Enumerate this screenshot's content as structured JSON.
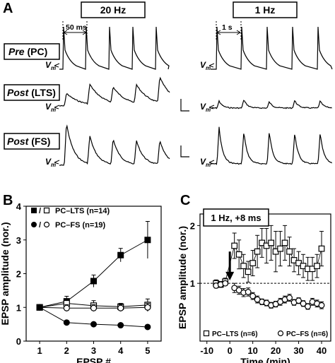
{
  "panel_labels": {
    "a": "A",
    "b": "B",
    "c": "C"
  },
  "panel_a": {
    "freq_left": "20 Hz",
    "freq_right": "1 Hz",
    "scale_left": "50 ms",
    "scale_right": "1 s",
    "vm_label": "V",
    "vm_sub": "m",
    "rows": [
      {
        "label_italic": "Pre",
        "label_rest": " (PC)"
      },
      {
        "label_italic": "Post",
        "label_rest": " (LTS)"
      },
      {
        "label_italic": "Post",
        "label_rest": " (FS)"
      }
    ]
  },
  "chart_data": [
    {
      "type": "line",
      "panel": "B",
      "xlabel": "EPSP #",
      "ylabel": "EPSP amplitude (nor.)",
      "x_ticks": [
        "1",
        "2",
        "3",
        "4",
        "5"
      ],
      "y_ticks": [
        "0",
        "1",
        "2",
        "3",
        "4"
      ],
      "xlim": [
        0.5,
        5.5
      ],
      "ylim": [
        0,
        4
      ],
      "legend": [
        {
          "marker_text": "/",
          "name": "PC–LTS (n=14)"
        },
        {
          "marker_text": "/",
          "name": "PC–FS (n=19)"
        }
      ],
      "series": [
        {
          "id": "lts_control",
          "marker": "filled-square",
          "x": [
            1,
            2,
            3,
            4,
            5
          ],
          "values": [
            1.0,
            1.18,
            1.78,
            2.55,
            3.0
          ],
          "err": [
            0.05,
            0.15,
            0.18,
            0.2,
            0.55
          ]
        },
        {
          "id": "lts_open",
          "marker": "open-square",
          "x": [
            1,
            2,
            3,
            4,
            5
          ],
          "values": [
            1.0,
            1.12,
            1.05,
            1.02,
            1.07
          ],
          "err": [
            0.05,
            0.12,
            0.15,
            0.1,
            0.18
          ]
        },
        {
          "id": "fs_open",
          "marker": "open-circle",
          "x": [
            1,
            2,
            3,
            4,
            5
          ],
          "values": [
            1.0,
            0.98,
            0.98,
            0.98,
            1.0
          ],
          "err": [
            0.04,
            0.1,
            0.1,
            0.1,
            0.12
          ]
        },
        {
          "id": "fs_control",
          "marker": "filled-circle",
          "x": [
            1,
            2,
            3,
            4,
            5
          ],
          "values": [
            1.0,
            0.55,
            0.5,
            0.47,
            0.42
          ],
          "err": [
            0.03,
            0.03,
            0.03,
            0.03,
            0.03
          ]
        }
      ]
    },
    {
      "type": "scatter",
      "panel": "C",
      "inset_label": "1 Hz, +8 ms",
      "xlabel": "Time (min)",
      "ylabel": "EPSP amplitude (nor.)",
      "x_ticks": [
        "-10",
        "0",
        "10",
        "20",
        "30",
        "40"
      ],
      "y_ticks": [
        "1",
        "2"
      ],
      "xlim": [
        -13,
        44
      ],
      "ylim": [
        0,
        2.2
      ],
      "legend": [
        {
          "name": "PC–LTS (n=6)"
        },
        {
          "name": "PC–FS (n=6)"
        }
      ],
      "series": [
        {
          "id": "lts",
          "marker": "open-square",
          "x": [
            -6,
            -4,
            -2,
            2,
            4,
            6,
            8,
            10,
            12,
            14,
            16,
            18,
            20,
            22,
            24,
            26,
            28,
            30,
            32,
            34,
            36,
            38,
            40
          ],
          "values": [
            1.0,
            0.98,
            1.03,
            1.65,
            1.5,
            1.3,
            1.2,
            1.35,
            1.55,
            1.7,
            1.65,
            1.7,
            1.55,
            1.6,
            1.7,
            1.55,
            1.4,
            1.35,
            1.3,
            1.25,
            1.25,
            1.3,
            1.6
          ],
          "err": [
            0.06,
            0.05,
            0.06,
            0.22,
            0.25,
            0.2,
            0.18,
            0.22,
            0.28,
            0.25,
            0.3,
            0.3,
            0.35,
            0.3,
            0.3,
            0.25,
            0.2,
            0.2,
            0.2,
            0.2,
            0.2,
            0.2,
            0.3
          ]
        },
        {
          "id": "fs",
          "marker": "open-circle",
          "x": [
            -6,
            -4,
            -2,
            2,
            4,
            6,
            8,
            10,
            12,
            14,
            16,
            18,
            20,
            22,
            24,
            26,
            28,
            30,
            32,
            34,
            36,
            38,
            40
          ],
          "values": [
            0.96,
            0.98,
            1.0,
            0.92,
            0.88,
            0.84,
            0.85,
            0.78,
            0.72,
            0.68,
            0.66,
            0.62,
            0.64,
            0.68,
            0.72,
            0.75,
            0.67,
            0.7,
            0.65,
            0.6,
            0.68,
            0.65,
            0.62
          ],
          "err": [
            0.04,
            0.05,
            0.04,
            0.08,
            0.07,
            0.07,
            0.07,
            0.06,
            0.06,
            0.05,
            0.05,
            0.05,
            0.05,
            0.06,
            0.06,
            0.06,
            0.05,
            0.05,
            0.05,
            0.05,
            0.06,
            0.06,
            0.06
          ]
        }
      ]
    }
  ]
}
